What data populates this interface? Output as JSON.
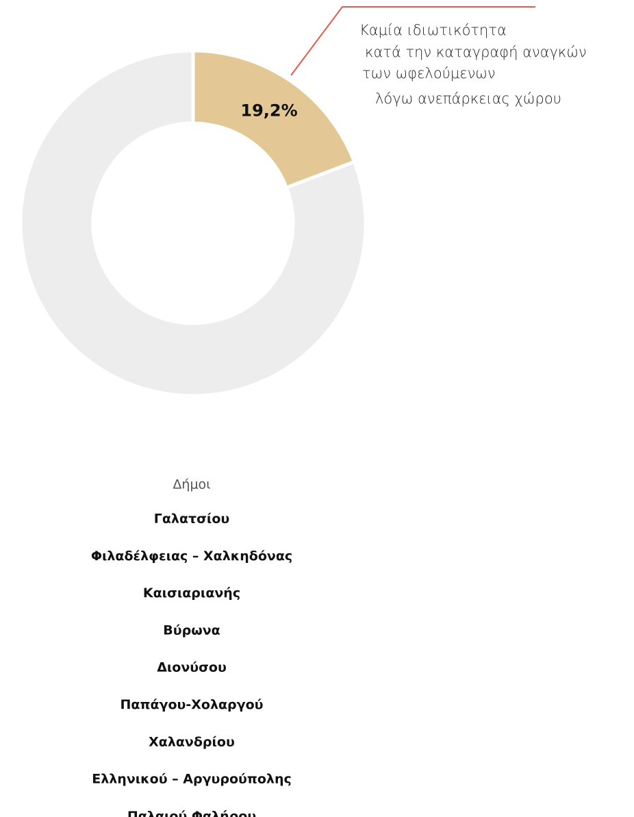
{
  "chart_data": {
    "type": "donut",
    "values": [
      19.2,
      80.8
    ],
    "value_labels": [
      "19,2%",
      null
    ],
    "colors": [
      "#e3c794",
      "#ededed"
    ],
    "annotation": {
      "lines": [
        "Καμία ιδιωτικότητα",
        "κατά την καταγραφή αναγκών",
        "των ωφελούμενων",
        "λόγω ανεπάρκειας χώρου"
      ],
      "color": "#e8594a"
    }
  },
  "list": {
    "title": "Δήμοι",
    "items": [
      "Γαλατσίου",
      "Φιλαδέλφειας – Χαλκηδόνας",
      "Καισιαριανής",
      "Βύρωνα",
      "Διονύσου",
      "Παπάγου-Χολαργού",
      "Χαλανδρίου",
      "Ελληνικού – Αργυρούπολης",
      "Παλαιού Φαλήρου"
    ]
  }
}
